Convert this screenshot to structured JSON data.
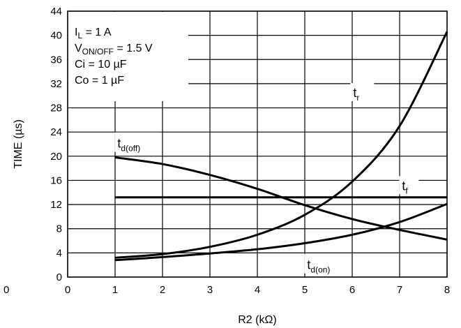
{
  "chart_data": {
    "type": "line",
    "title": "",
    "xlabel": "R2 (kΩ)",
    "ylabel": "TIME (µs)",
    "xlim": [
      0,
      8
    ],
    "ylim": [
      0,
      44
    ],
    "grid": true,
    "x_ticks": [
      "0",
      "1",
      "2",
      "3",
      "4",
      "5",
      "6",
      "7",
      "8"
    ],
    "y_ticks": [
      "0",
      "4",
      "8",
      "12",
      "16",
      "20",
      "24",
      "28",
      "32",
      "36",
      "40",
      "44"
    ],
    "extra_tick": "0",
    "conditions": [
      {
        "main": "I",
        "sub": "L",
        "rest": " = 1 A"
      },
      {
        "main": "V",
        "sub": "ON/OFF",
        "rest": " = 1.5 V"
      },
      {
        "main": "Ci = 10 µF",
        "sub": "",
        "rest": ""
      },
      {
        "main": "Co = 1 µF",
        "sub": "",
        "rest": ""
      }
    ],
    "series": [
      {
        "name": "tr",
        "label_main": "t",
        "label_sub": "r",
        "x": [
          1,
          2,
          3,
          4,
          5,
          6,
          7,
          8
        ],
        "values": [
          3.2,
          3.8,
          5.0,
          7.0,
          10.3,
          15.8,
          25.0,
          40.6
        ]
      },
      {
        "name": "td(off)",
        "label_main": "t",
        "label_sub": "d(off)",
        "x": [
          1,
          2,
          3,
          4,
          5,
          6,
          7,
          8
        ],
        "values": [
          19.8,
          18.7,
          16.9,
          14.6,
          11.9,
          9.6,
          7.8,
          6.2
        ]
      },
      {
        "name": "tf",
        "label_main": "t",
        "label_sub": "f",
        "x": [
          1,
          2,
          3,
          4,
          5,
          6,
          7,
          8
        ],
        "values": [
          13.2,
          13.2,
          13.2,
          13.2,
          13.2,
          13.2,
          13.2,
          13.2
        ]
      },
      {
        "name": "td(on)",
        "label_main": "t",
        "label_sub": "d(on)",
        "x": [
          1,
          2,
          3,
          4,
          5,
          6,
          7,
          8
        ],
        "values": [
          2.8,
          3.3,
          3.9,
          4.6,
          5.6,
          7.0,
          9.1,
          12.1
        ]
      }
    ]
  }
}
